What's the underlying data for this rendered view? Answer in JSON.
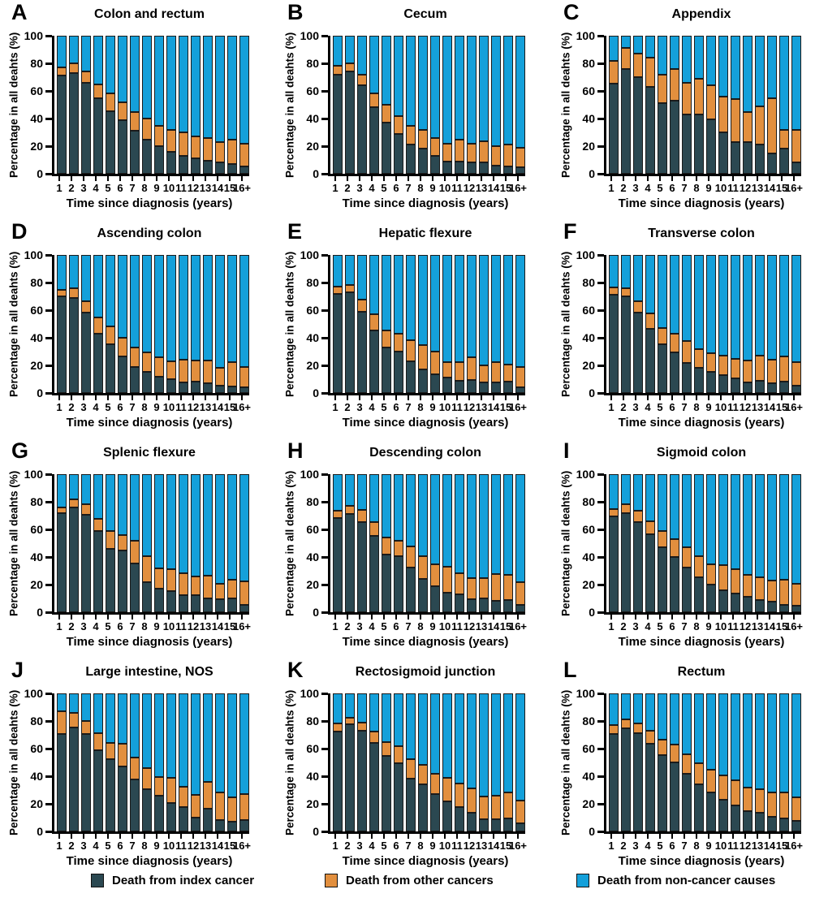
{
  "figure": {
    "y_axis_label": "Percentage in all deahts (%)",
    "x_axis_label": "Time since diagnosis (years)",
    "legend": [
      {
        "key": "index_cancer",
        "label": "Death from index  cancer"
      },
      {
        "key": "other_cancers",
        "label": "Death from other cancers"
      },
      {
        "key": "non_cancer",
        "label": "Death from non-cancer causes"
      }
    ],
    "colors": {
      "index_cancer": "#2b4851",
      "other_cancers": "#e28f3e",
      "non_cancer": "#14a0da",
      "axis": "#000000",
      "segment_border": "#1b1b1b"
    }
  },
  "chart_data": {
    "type": "bar",
    "stacked": true,
    "categories": [
      "1",
      "2",
      "3",
      "4",
      "5",
      "6",
      "7",
      "8",
      "9",
      "10",
      "11",
      "12",
      "13",
      "14",
      "15",
      "16+"
    ],
    "xlabel": "Time since diagnosis (years)",
    "ylabel": "Percentage in all deahts (%)",
    "ylim": [
      0,
      100
    ],
    "y_ticks": [
      0,
      20,
      40,
      60,
      80,
      100
    ],
    "grid": false,
    "legend_position": "bottom",
    "series_names": [
      "Death from index  cancer",
      "Death from other cancers",
      "Death from non-cancer causes"
    ],
    "panels": [
      {
        "panel": "A",
        "title": "Colon and rectum",
        "index_cancer": [
          71,
          73,
          66,
          55,
          45,
          39,
          31,
          25,
          20,
          16,
          13,
          11,
          9.5,
          8,
          7,
          5.5
        ],
        "other_cancers": [
          6,
          7,
          8,
          10,
          13,
          13,
          14,
          15,
          15,
          16,
          17,
          16,
          16.5,
          15,
          18,
          16.5
        ],
        "non_cancer": [
          23,
          20,
          26,
          35,
          42,
          48,
          55,
          60,
          65,
          68,
          70,
          73,
          74,
          77,
          75,
          78
        ]
      },
      {
        "panel": "B",
        "title": "Cecum",
        "index_cancer": [
          72,
          74,
          64,
          48,
          37,
          29,
          21,
          18,
          13,
          9,
          9,
          8,
          8,
          6,
          5,
          4.5
        ],
        "other_cancers": [
          6,
          6,
          8,
          10,
          13,
          13,
          14,
          14,
          13,
          13,
          16,
          14,
          15.5,
          14,
          16,
          14.5
        ],
        "non_cancer": [
          22,
          20,
          28,
          42,
          50,
          58,
          65,
          68,
          74,
          78,
          75,
          78,
          76.5,
          80,
          79,
          81
        ]
      },
      {
        "panel": "C",
        "title": "Appendix",
        "index_cancer": [
          65,
          76,
          70,
          63,
          51,
          53,
          43,
          43,
          39.5,
          30,
          23,
          23,
          21,
          14.5,
          18.5,
          8.5
        ],
        "other_cancers": [
          17,
          15,
          17,
          21,
          21,
          23,
          23,
          26,
          24.5,
          26,
          31,
          22,
          28,
          40.5,
          13.5,
          23.5
        ],
        "non_cancer": [
          18,
          9,
          13,
          16,
          28,
          24,
          34,
          31,
          36,
          44,
          46,
          55,
          51,
          45,
          68,
          68
        ]
      },
      {
        "panel": "D",
        "title": "Ascending colon",
        "index_cancer": [
          70,
          69,
          58,
          43,
          35,
          26.5,
          19,
          15.5,
          11.5,
          10,
          7.5,
          8,
          7,
          5,
          4.5,
          4
        ],
        "other_cancers": [
          5,
          7,
          8.5,
          11.5,
          13.5,
          13.5,
          14,
          14,
          14.5,
          13,
          16.5,
          15.5,
          16.5,
          13.5,
          18,
          15
        ],
        "non_cancer": [
          25,
          24,
          33.5,
          45.5,
          51.5,
          60,
          67,
          70.5,
          74,
          77,
          76,
          76.5,
          76.5,
          81.5,
          77.5,
          81
        ]
      },
      {
        "panel": "E",
        "title": "Hepatic flexure",
        "index_cancer": [
          72,
          73,
          59,
          45,
          33,
          30,
          23,
          17,
          13.5,
          11,
          9,
          9.5,
          7.5,
          7.5,
          8,
          4
        ],
        "other_cancers": [
          5,
          5.5,
          8.5,
          12,
          12.5,
          13,
          15,
          17.5,
          16.5,
          11.5,
          13.5,
          16.5,
          12.5,
          15,
          12.5,
          15
        ],
        "non_cancer": [
          23,
          21.5,
          32.5,
          43,
          54.5,
          57,
          62,
          65.5,
          70,
          77.5,
          77.5,
          74,
          80,
          77.5,
          79.5,
          81
        ]
      },
      {
        "panel": "F",
        "title": "Transverse colon",
        "index_cancer": [
          71,
          70,
          58.5,
          46.5,
          35.5,
          29.5,
          22,
          18.5,
          15.5,
          13,
          10.5,
          7.5,
          9,
          7,
          8,
          5.5
        ],
        "other_cancers": [
          5.5,
          6,
          8,
          11,
          11.5,
          13.5,
          15.5,
          13.5,
          13.5,
          14,
          14,
          16,
          18,
          17,
          18.5,
          17
        ],
        "non_cancer": [
          23.5,
          24,
          33.5,
          42.5,
          53,
          57,
          62.5,
          68,
          71,
          73,
          75.5,
          76.5,
          73,
          76,
          73.5,
          77.5
        ]
      },
      {
        "panel": "G",
        "title": "Splenic flexure",
        "index_cancer": [
          71.5,
          76,
          70.5,
          59,
          46,
          44.5,
          35.5,
          22,
          17,
          15.5,
          12.5,
          12.5,
          10,
          9.5,
          10,
          5.5
        ],
        "other_cancers": [
          4.5,
          6,
          7.5,
          8.5,
          13,
          11.5,
          16.5,
          18.5,
          15,
          15.5,
          15.5,
          13.5,
          16.5,
          11,
          13.5,
          17
        ],
        "non_cancer": [
          24,
          18,
          22,
          32.5,
          41,
          44,
          48,
          59.5,
          68,
          69,
          72,
          74,
          73.5,
          79.5,
          76.5,
          77.5
        ]
      },
      {
        "panel": "H",
        "title": "Descending colon",
        "index_cancer": [
          68,
          71,
          65,
          55,
          42,
          40.5,
          32.5,
          24,
          19,
          14,
          13,
          9.5,
          10,
          8,
          9,
          5
        ],
        "other_cancers": [
          5.5,
          6,
          9,
          10.5,
          12,
          11.5,
          15,
          16.5,
          16,
          19,
          15.5,
          15,
          15,
          19.5,
          18,
          16.5
        ],
        "non_cancer": [
          26.5,
          23,
          26,
          34.5,
          46,
          48,
          52.5,
          59.5,
          65,
          67,
          71.5,
          75.5,
          75,
          72.5,
          73,
          78.5
        ]
      },
      {
        "panel": "I",
        "title": "Sigmoid colon",
        "index_cancer": [
          69.5,
          71.5,
          65.5,
          56.5,
          47,
          40,
          32.5,
          25,
          20,
          16,
          13.5,
          11,
          9,
          7.5,
          5.5,
          4.5
        ],
        "other_cancers": [
          5,
          6.5,
          8,
          9.5,
          12,
          13,
          14.5,
          15.5,
          14.5,
          18,
          17.5,
          16,
          16.5,
          15.5,
          18,
          16
        ],
        "non_cancer": [
          25.5,
          22,
          26.5,
          34,
          41,
          47,
          53,
          59.5,
          65.5,
          66,
          69,
          73,
          74.5,
          77,
          76.5,
          79.5
        ]
      },
      {
        "panel": "J",
        "title": "Large intestine, NOS",
        "index_cancer": [
          70.5,
          75.5,
          70.5,
          59,
          52.5,
          47,
          37.5,
          30.5,
          26,
          20.5,
          17.5,
          10,
          16.5,
          8.5,
          7,
          8.5
        ],
        "other_cancers": [
          16.5,
          10.5,
          9.5,
          12,
          11.5,
          16.5,
          16,
          15.5,
          13.5,
          18.5,
          15,
          16.5,
          19.5,
          19.5,
          18,
          18.5
        ],
        "non_cancer": [
          13,
          14,
          20,
          29,
          36,
          36.5,
          46.5,
          54,
          60.5,
          61,
          67.5,
          73.5,
          64,
          72,
          75,
          73
        ]
      },
      {
        "panel": "K",
        "title": "Rectosigmoid junction",
        "index_cancer": [
          72.5,
          77.5,
          73,
          64,
          55,
          49.5,
          38.5,
          34,
          27,
          22,
          17.5,
          13.5,
          9,
          9,
          9.5,
          6
        ],
        "other_cancers": [
          5.5,
          5,
          6,
          8.5,
          10,
          12,
          14,
          14,
          15,
          17,
          17.5,
          17.5,
          16.5,
          17,
          19,
          16.5
        ],
        "non_cancer": [
          22,
          17.5,
          21,
          27.5,
          35,
          38.5,
          47.5,
          52,
          58,
          61,
          65,
          69,
          74.5,
          74,
          71.5,
          77.5
        ]
      },
      {
        "panel": "L",
        "title": "Rectum",
        "index_cancer": [
          70.5,
          74.5,
          71,
          63.5,
          55.5,
          50,
          41.5,
          34,
          28.5,
          23,
          19,
          14.5,
          13.5,
          10.5,
          9.5,
          7.5
        ],
        "other_cancers": [
          6.5,
          6.5,
          7.5,
          9.5,
          11,
          13,
          14.5,
          15.5,
          16.5,
          17.5,
          18,
          17,
          17,
          17.5,
          19,
          17.5
        ],
        "non_cancer": [
          23,
          19,
          21.5,
          27,
          33.5,
          37,
          44,
          50.5,
          55,
          59.5,
          63,
          68.5,
          69.5,
          72,
          71.5,
          75
        ]
      }
    ]
  }
}
